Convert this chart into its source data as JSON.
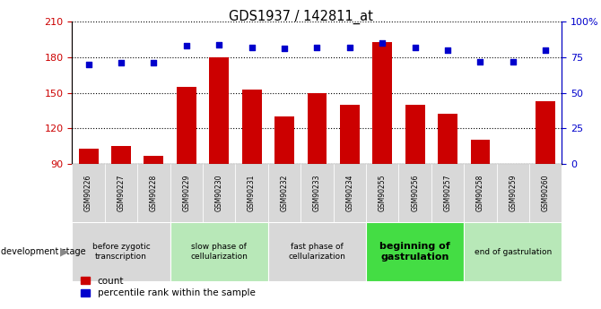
{
  "title": "GDS1937 / 142811_at",
  "samples": [
    "GSM90226",
    "GSM90227",
    "GSM90228",
    "GSM90229",
    "GSM90230",
    "GSM90231",
    "GSM90232",
    "GSM90233",
    "GSM90234",
    "GSM90255",
    "GSM90256",
    "GSM90257",
    "GSM90258",
    "GSM90259",
    "GSM90260"
  ],
  "counts": [
    103,
    105,
    97,
    155,
    180,
    153,
    130,
    150,
    140,
    193,
    140,
    132,
    110,
    88,
    143
  ],
  "percentiles": [
    70,
    71,
    71,
    83,
    84,
    82,
    81,
    82,
    82,
    85,
    82,
    80,
    72,
    72,
    80
  ],
  "ylim_left": [
    90,
    210
  ],
  "ylim_right": [
    0,
    100
  ],
  "yticks_left": [
    90,
    120,
    150,
    180,
    210
  ],
  "yticks_right": [
    0,
    25,
    50,
    75,
    100
  ],
  "ytick_labels_right": [
    "0",
    "25",
    "50",
    "75",
    "100%"
  ],
  "bar_color": "#cc0000",
  "dot_color": "#0000cc",
  "background_color": "#ffffff",
  "cell_color": "#d8d8d8",
  "stage_groups": [
    {
      "label": "before zygotic\ntranscription",
      "start": 0,
      "end": 3,
      "color": "#d8d8d8",
      "bold": false
    },
    {
      "label": "slow phase of\ncellularization",
      "start": 3,
      "end": 6,
      "color": "#b8e8b8",
      "bold": false
    },
    {
      "label": "fast phase of\ncellularization",
      "start": 6,
      "end": 9,
      "color": "#d8d8d8",
      "bold": false
    },
    {
      "label": "beginning of\ngastrulation",
      "start": 9,
      "end": 12,
      "color": "#44dd44",
      "bold": true
    },
    {
      "label": "end of gastrulation",
      "start": 12,
      "end": 15,
      "color": "#b8e8b8",
      "bold": false
    }
  ],
  "dev_stage_label": "development stage",
  "legend_count": "count",
  "legend_pct": "percentile rank within the sample"
}
